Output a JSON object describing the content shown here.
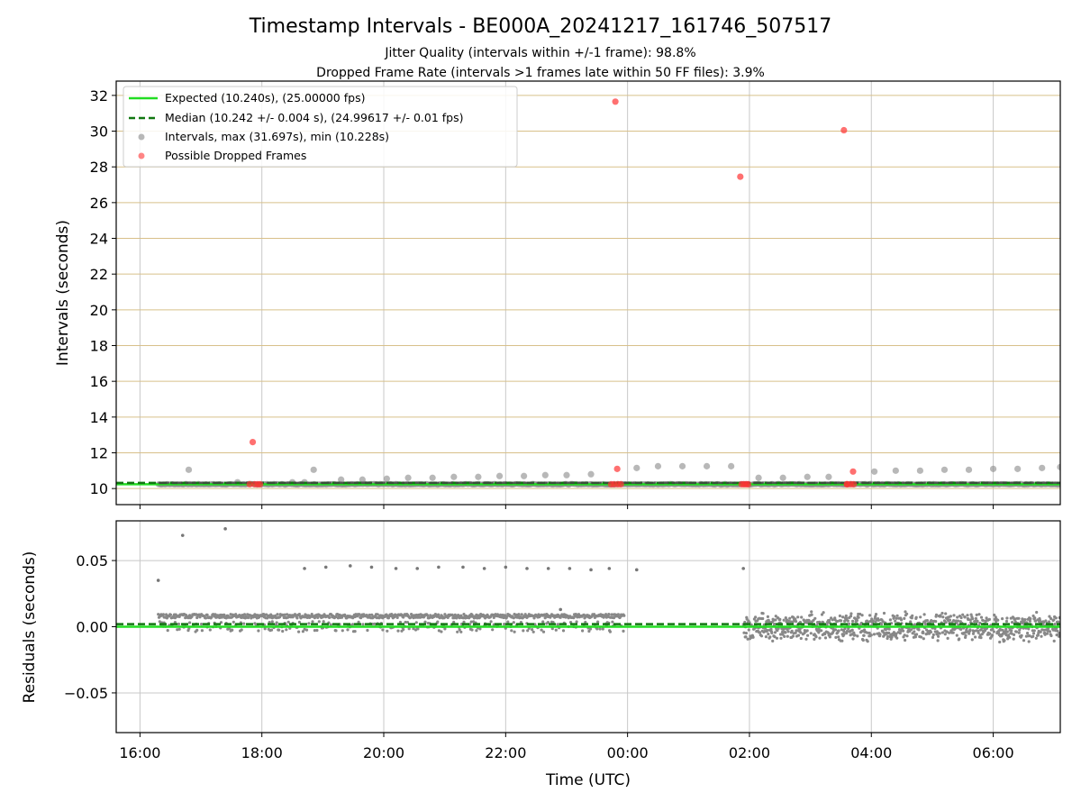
{
  "title": "Timestamp Intervals - BE000A_20241217_161746_507517",
  "subtitle_1": "Jitter Quality (intervals within +/-1 frame): 98.8%",
  "subtitle_2": "Dropped Frame Rate (intervals >1 frames late within 50 FF files): 3.9%",
  "colors": {
    "expected": "#22dd22",
    "median": "#117711",
    "intervals": "#888888",
    "dropped": "#ff3333",
    "hgrid_top": "#d8c08a",
    "grid": "#c8c8c8"
  },
  "chart_data": [
    {
      "type": "scatter",
      "ylabel": "Intervals (seconds)",
      "ylim": [
        9.1,
        32.8
      ],
      "yticks": [
        10,
        12,
        14,
        16,
        18,
        20,
        22,
        24,
        26,
        28,
        30,
        32
      ],
      "xlim_hours": [
        15.61,
        31.1
      ],
      "xticks_hours": [
        16,
        18,
        20,
        22,
        24,
        26,
        28,
        30
      ],
      "xtick_labels": [
        "16:00",
        "18:00",
        "20:00",
        "22:00",
        "00:00",
        "02:00",
        "04:00",
        "06:00"
      ],
      "grid": "on",
      "legend_position": "top-left",
      "legend": [
        "Expected (10.240s), (25.00000 fps)",
        "Median (10.242 +/- 0.004 s), (24.99617 +/- 0.01 fps)",
        "Intervals, max (31.697s), min (10.228s)",
        "Possible Dropped Frames"
      ],
      "expected_value": 10.24,
      "median_value": 10.242,
      "intervals_xrange_hours": [
        16.3,
        31.1
      ],
      "baseline_interval": 10.24,
      "outlier_intervals": {
        "x_hours": [
          16.8,
          17.6,
          18.5,
          18.7,
          18.85,
          19.3,
          19.65,
          20.05,
          20.4,
          20.8,
          21.15,
          21.55,
          21.9,
          22.3,
          22.65,
          23.0,
          23.4,
          24.15,
          24.5,
          24.9,
          25.3,
          25.7,
          26.15,
          26.55,
          26.95,
          27.3,
          28.05,
          28.4,
          28.8,
          29.2,
          29.6,
          30.0,
          30.4,
          30.8,
          31.1
        ],
        "y": [
          11.05,
          10.35,
          10.35,
          10.35,
          11.05,
          10.5,
          10.5,
          10.55,
          10.6,
          10.6,
          10.65,
          10.65,
          10.7,
          10.7,
          10.75,
          10.75,
          10.8,
          11.15,
          11.25,
          11.25,
          11.25,
          11.25,
          10.6,
          10.6,
          10.65,
          10.65,
          10.95,
          11.0,
          11.0,
          11.05,
          11.05,
          11.1,
          11.1,
          11.15,
          11.2
        ]
      },
      "dropped_frames": {
        "x_hours": [
          17.85,
          17.8,
          17.88,
          17.93,
          17.97,
          23.8,
          23.73,
          23.78,
          23.84,
          23.89,
          25.85,
          25.91,
          25.95,
          25.87,
          25.98,
          27.55,
          27.6,
          27.66,
          27.71,
          27.6,
          27.7
        ],
        "y": [
          12.6,
          10.24,
          10.24,
          10.24,
          10.24,
          31.65,
          10.24,
          10.24,
          10.24,
          10.24,
          27.45,
          10.24,
          10.24,
          10.24,
          10.24,
          30.05,
          10.24,
          10.24,
          10.24,
          10.24,
          10.95
        ]
      },
      "extra_dropped": {
        "x_hours": [
          23.83
        ],
        "y": [
          11.1
        ]
      }
    },
    {
      "type": "scatter",
      "xlabel": "Time (UTC)",
      "ylabel": "Residuals (seconds)",
      "ylim": [
        -0.08,
        0.08
      ],
      "yticks": [
        0.05,
        0.0,
        -0.05
      ],
      "ytick_labels": [
        "0.05",
        "0.00",
        "−0.05"
      ],
      "xlim_hours": [
        15.61,
        31.1
      ],
      "xticks_hours": [
        16,
        18,
        20,
        22,
        24,
        26,
        28,
        30
      ],
      "xtick_labels": [
        "16:00",
        "18:00",
        "20:00",
        "22:00",
        "00:00",
        "02:00",
        "04:00",
        "06:00"
      ],
      "grid": "on",
      "expected_value": 0.0,
      "median_value": 0.002,
      "residual_band": {
        "stable_segment_hours": [
          16.3,
          23.95
        ],
        "stable_level": 0.008,
        "noisy_segment_hours": [
          25.9,
          31.1
        ],
        "noisy_center": 0.0,
        "noisy_spread": 0.012
      },
      "outliers": {
        "x_hours": [
          16.3,
          16.7,
          17.4,
          18.7,
          19.05,
          19.45,
          19.8,
          20.2,
          20.55,
          20.9,
          21.3,
          21.65,
          22.0,
          22.35,
          22.7,
          23.05,
          23.4,
          23.7,
          24.15,
          25.9,
          22.9
        ],
        "y": [
          0.035,
          0.069,
          0.074,
          0.044,
          0.045,
          0.046,
          0.045,
          0.044,
          0.044,
          0.045,
          0.045,
          0.044,
          0.045,
          0.044,
          0.044,
          0.044,
          0.043,
          0.044,
          0.043,
          0.044,
          0.013
        ]
      }
    }
  ]
}
